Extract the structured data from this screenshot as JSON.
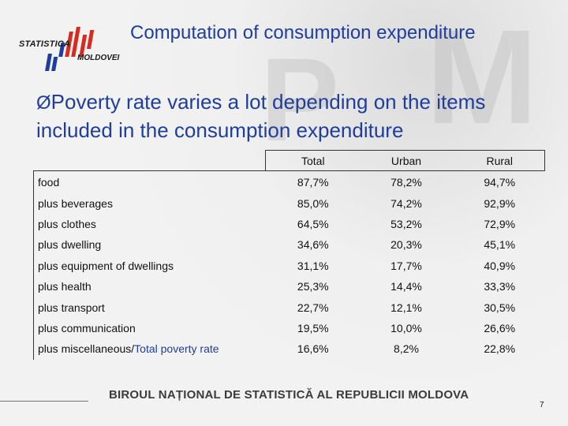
{
  "header": {
    "title": "Computation of consumption expenditure",
    "logo_line1": "STATISTICA",
    "logo_line2": "MOLDOVEI"
  },
  "subtitle": {
    "bullet": "Ø",
    "text": "Poverty rate varies a lot depending on the items included in the consumption expenditure"
  },
  "table": {
    "columns": [
      "Total",
      "Urban",
      "Rural"
    ],
    "rows": [
      {
        "label": "food",
        "total": "87,7%",
        "urban": "78,2%",
        "rural": "94,7%"
      },
      {
        "label": "plus beverages",
        "total": "85,0%",
        "urban": "74,2%",
        "rural": "92,9%"
      },
      {
        "label": "plus clothes",
        "total": "64,5%",
        "urban": "53,2%",
        "rural": "72,9%"
      },
      {
        "label": "plus dwelling",
        "total": "34,6%",
        "urban": "20,3%",
        "rural": "45,1%"
      },
      {
        "label": "plus equipment of dwellings",
        "total": "31,1%",
        "urban": "17,7%",
        "rural": "40,9%"
      },
      {
        "label": "plus health",
        "total": "25,3%",
        "urban": "14,4%",
        "rural": "33,3%"
      },
      {
        "label": "plus transport",
        "total": "22,7%",
        "urban": "12,1%",
        "rural": "30,5%"
      },
      {
        "label": "plus communication",
        "total": "19,5%",
        "urban": "10,0%",
        "rural": "26,6%"
      },
      {
        "label": "plus miscellaneous/",
        "label_suffix": "Total poverty rate",
        "total": "16,6%",
        "urban": "8,2%",
        "rural": "22,8%"
      }
    ]
  },
  "footer": {
    "text": "BIROUL NAȚIONAL DE STATISTICĂ AL REPUBLICII MOLDOVA",
    "page_number": "7"
  },
  "colors": {
    "title": "#1f3e9c",
    "logo_red": "#d62b1f",
    "logo_blue": "#1f3e9c"
  }
}
